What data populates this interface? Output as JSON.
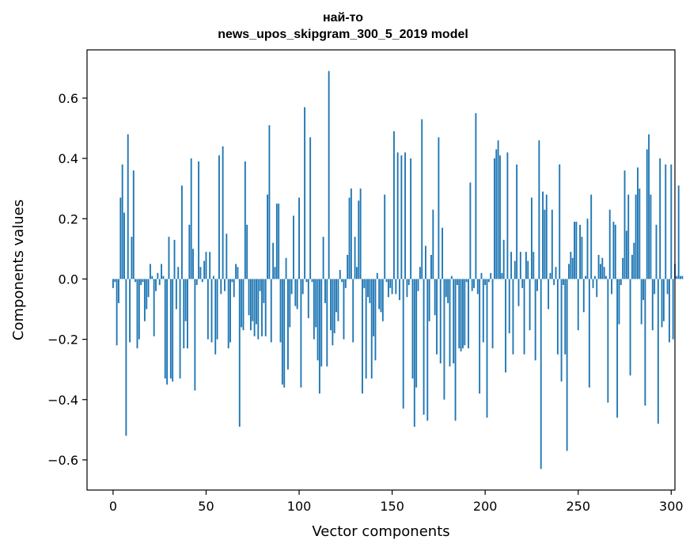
{
  "chart_data": {
    "type": "bar",
    "title": "най-то\nnews_upos_skipgram_300_5_2019 model",
    "title_lines": [
      "най-то",
      "news_upos_skipgram_300_5_2019 model"
    ],
    "xlabel": "Vector components",
    "ylabel": "Components values",
    "xlim": [
      -14,
      302
    ],
    "ylim": [
      -0.7,
      0.76
    ],
    "x_ticks": [
      0,
      50,
      100,
      150,
      200,
      250,
      300
    ],
    "x_tick_labels": [
      "0",
      "50",
      "100",
      "150",
      "200",
      "250",
      "300"
    ],
    "y_ticks": [
      -0.6,
      -0.4,
      -0.2,
      0.0,
      0.2,
      0.4,
      0.6
    ],
    "y_tick_labels": [
      "−0.6",
      "−0.4",
      "−0.2",
      "0.0",
      "0.2",
      "0.4",
      "0.6"
    ],
    "bar_color": "#1f77b4",
    "grid": false,
    "legend": "none",
    "values": [
      -0.03,
      -0.01,
      -0.22,
      -0.08,
      0.27,
      0.38,
      0.22,
      -0.52,
      0.48,
      -0.21,
      0.14,
      0.36,
      -0.01,
      -0.23,
      -0.2,
      -0.02,
      -0.01,
      -0.14,
      -0.1,
      -0.06,
      0.05,
      0.01,
      -0.19,
      -0.04,
      0.02,
      -0.02,
      0.05,
      0.01,
      -0.33,
      -0.35,
      0.14,
      -0.33,
      -0.34,
      0.13,
      -0.1,
      0.04,
      -0.33,
      0.31,
      -0.23,
      -0.14,
      -0.23,
      0.18,
      0.4,
      0.1,
      -0.37,
      -0.02,
      0.39,
      0.04,
      -0.01,
      0.06,
      0.09,
      -0.2,
      0.09,
      -0.21,
      0.01,
      -0.25,
      -0.2,
      0.41,
      -0.05,
      0.44,
      -0.04,
      0.15,
      -0.23,
      -0.21,
      -0.01,
      -0.06,
      0.05,
      0.04,
      -0.49,
      -0.16,
      -0.17,
      0.39,
      0.18,
      -0.12,
      -0.17,
      -0.14,
      -0.19,
      -0.15,
      -0.2,
      -0.04,
      -0.19,
      -0.08,
      -0.19,
      0.28,
      0.51,
      -0.21,
      0.12,
      0.04,
      0.25,
      0.25,
      -0.21,
      -0.35,
      -0.36,
      0.07,
      -0.3,
      -0.16,
      -0.05,
      0.21,
      -0.09,
      -0.1,
      0.27,
      -0.36,
      -0.05,
      0.57,
      -0.01,
      -0.13,
      0.47,
      -0.01,
      -0.2,
      -0.16,
      -0.27,
      -0.38,
      -0.29,
      0.14,
      -0.08,
      -0.29,
      0.69,
      -0.17,
      -0.22,
      -0.18,
      -0.11,
      -0.14,
      0.03,
      -0.01,
      -0.2,
      -0.03,
      0.08,
      0.27,
      0.3,
      -0.21,
      0.14,
      0.04,
      0.26,
      0.3,
      -0.38,
      -0.03,
      -0.33,
      -0.06,
      -0.08,
      -0.33,
      -0.19,
      -0.27,
      0.02,
      -0.1,
      -0.11,
      -0.14,
      0.28,
      -0.01,
      -0.06,
      -0.03,
      -0.05,
      0.49,
      -0.05,
      0.42,
      -0.07,
      0.41,
      -0.43,
      0.42,
      -0.06,
      -0.02,
      0.4,
      -0.33,
      -0.49,
      -0.36,
      -0.04,
      0.04,
      0.53,
      -0.45,
      0.11,
      -0.47,
      -0.14,
      0.08,
      0.23,
      -0.12,
      -0.25,
      0.47,
      -0.28,
      0.17,
      -0.4,
      -0.06,
      -0.08,
      -0.29,
      0.01,
      -0.28,
      -0.47,
      -0.02,
      -0.23,
      -0.24,
      -0.23,
      -0.22,
      -0.01,
      -0.23,
      0.32,
      -0.04,
      -0.03,
      0.55,
      -0.05,
      -0.38,
      0.02,
      -0.21,
      -0.02,
      -0.46,
      -0.01,
      0.02,
      -0.23,
      0.4,
      0.43,
      0.46,
      0.41,
      0.02,
      0.13,
      -0.31,
      0.42,
      -0.18,
      0.09,
      -0.25,
      0.06,
      0.38,
      -0.09,
      0.09,
      -0.03,
      -0.25,
      0.09,
      0.06,
      -0.17,
      0.27,
      0.09,
      -0.27,
      -0.04,
      0.46,
      -0.63,
      0.29,
      0.23,
      0.28,
      -0.1,
      0.02,
      0.23,
      -0.02,
      0.04,
      -0.25,
      0.38,
      -0.34,
      -0.02,
      -0.25,
      -0.57,
      0.05,
      0.09,
      0.07,
      0.19,
      0.19,
      -0.17,
      0.18,
      0.14,
      -0.11,
      0.01,
      0.2,
      -0.36,
      0.28,
      -0.03,
      0.01,
      -0.06,
      0.08,
      0.05,
      0.07,
      0.04,
      0.01,
      -0.41,
      0.23,
      -0.05,
      0.19,
      0.18,
      -0.46,
      -0.15,
      -0.02,
      0.07,
      0.36,
      0.16,
      0.28,
      -0.32,
      0.08,
      0.12,
      0.28,
      0.37,
      0.3,
      -0.15,
      -0.07,
      -0.42,
      0.43,
      0.48,
      0.28,
      -0.17,
      -0.05,
      0.18,
      -0.48,
      0.4,
      -0.16,
      -0.14,
      0.38,
      -0.05,
      -0.21,
      0.38,
      -0.2,
      0.05,
      0.01,
      0.31,
      0.01,
      0.01
    ]
  }
}
